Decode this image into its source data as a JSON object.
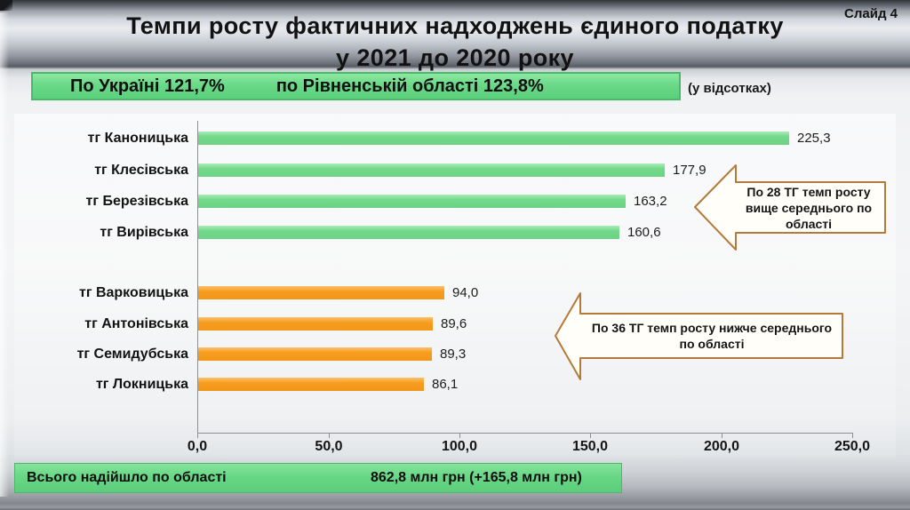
{
  "slide": {
    "number_label": "Слайд 4",
    "title_line1": "Темпи росту фактичних надходжень єдиного податку",
    "title_line2": "у 2021 до 2020 року",
    "banner": {
      "ukraine": "По Україні 121,7%",
      "region": "по Рівненській області  123,8%"
    },
    "unit_note": "(у відсотках)",
    "footer": {
      "label": "Всього надійшло по області",
      "value": "862,8 млн грн (+165,8 млн грн)"
    }
  },
  "callouts": [
    {
      "text": "По 28 ТГ темп росту вище середнього по області"
    },
    {
      "text": "По 36 ТГ темп росту нижче середнього по області"
    }
  ],
  "chart_data": {
    "type": "bar",
    "orientation": "horizontal",
    "title": "Темпи росту фактичних надходжень єдиного податку у 2021 до 2020 року (у відсотках)",
    "categories": [
      "тг Каноницька",
      "тг Клесівська",
      "тг Березівська",
      "тг Вирівська",
      "тг Варковицька",
      "тг Антонівська",
      "тг Семидубська",
      "тг Локницька"
    ],
    "values": [
      225.3,
      177.9,
      163.2,
      160.6,
      94.0,
      89.6,
      89.3,
      86.1
    ],
    "value_labels": [
      "225,3",
      "177,9",
      "163,2",
      "160,6",
      "94,0",
      "89,6",
      "89,3",
      "86,1"
    ],
    "groups": [
      "above",
      "above",
      "above",
      "above",
      "below",
      "below",
      "below",
      "below"
    ],
    "colors": {
      "above": "#74d98a",
      "below": "#f79d1e"
    },
    "x_ticks": [
      "0,0",
      "50,0",
      "100,0",
      "150,0",
      "200,0",
      "250,0"
    ],
    "x_tick_values": [
      0,
      50,
      100,
      150,
      200,
      250
    ],
    "xlim": [
      0,
      250
    ],
    "xlabel": "",
    "ylabel": "",
    "legend": null,
    "grid": false,
    "reference_values": {
      "ukraine_pct": 121.7,
      "region_pct": 123.8
    }
  }
}
